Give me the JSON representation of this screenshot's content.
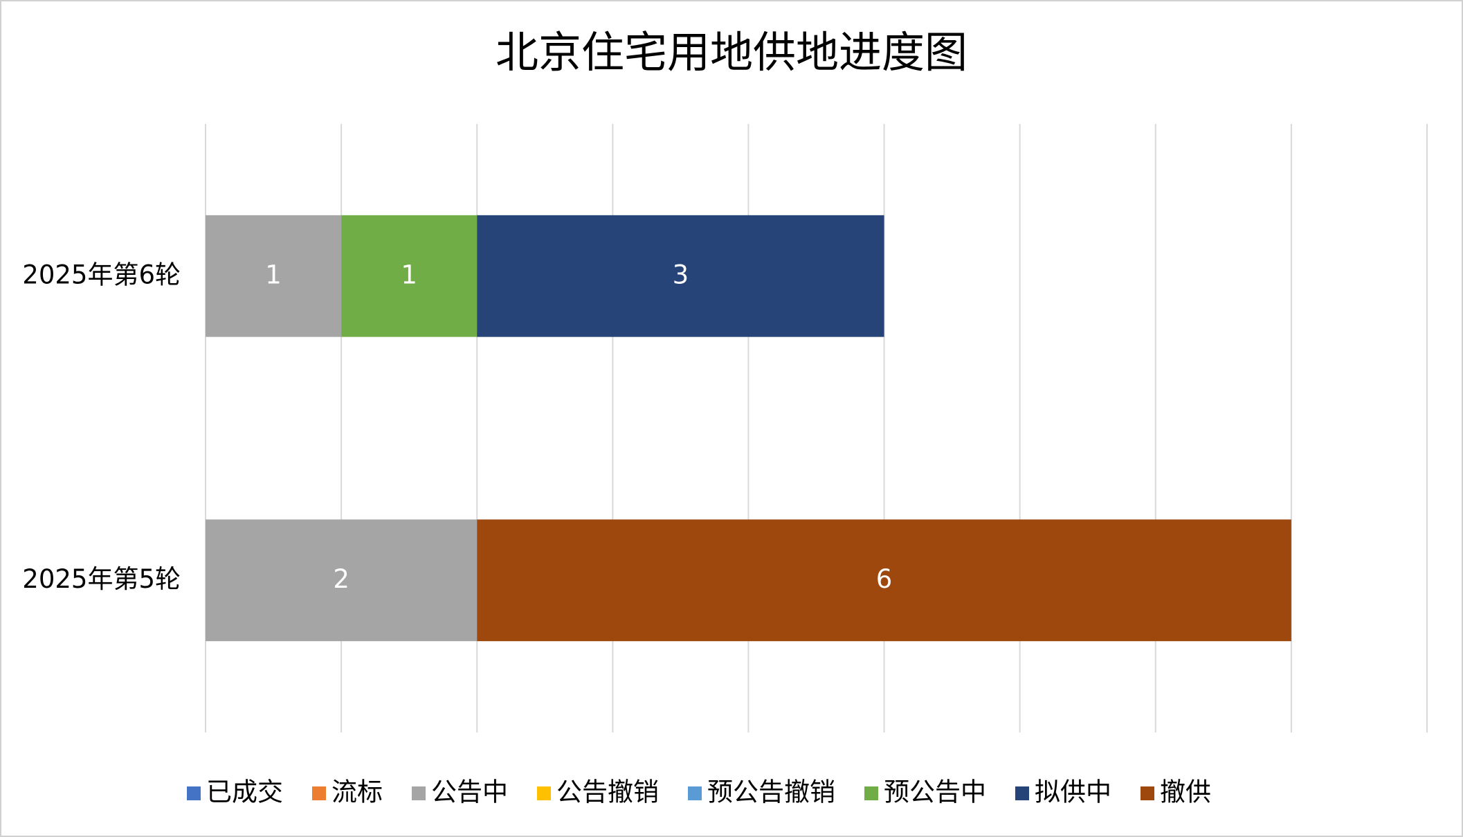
{
  "chart_data": {
    "type": "stacked-barh",
    "title": "北京住宅用地供地进度图",
    "categories": [
      "2025年第6轮",
      "2025年第5轮"
    ],
    "series": [
      {
        "name": "已成交",
        "color": "#4472c4",
        "values": [
          null,
          null
        ]
      },
      {
        "name": "流标",
        "color": "#ed7d31",
        "values": [
          null,
          null
        ]
      },
      {
        "name": "公告中",
        "color": "#a5a5a5",
        "values": [
          1,
          2
        ]
      },
      {
        "name": "公告撤销",
        "color": "#ffc000",
        "values": [
          null,
          null
        ]
      },
      {
        "name": "预公告撤销",
        "color": "#5b9bd5",
        "values": [
          null,
          null
        ]
      },
      {
        "name": "预公告中",
        "color": "#70ad47",
        "values": [
          1,
          null
        ]
      },
      {
        "name": "拟供中",
        "color": "#264478",
        "values": [
          3,
          null
        ]
      },
      {
        "name": "撤供",
        "color": "#9e480e",
        "values": [
          null,
          6
        ]
      }
    ],
    "xlim": [
      0,
      9
    ],
    "xticks": [
      0,
      1,
      2,
      3,
      4,
      5,
      6,
      7,
      8,
      9
    ],
    "grid": true,
    "legend": "bottom"
  }
}
